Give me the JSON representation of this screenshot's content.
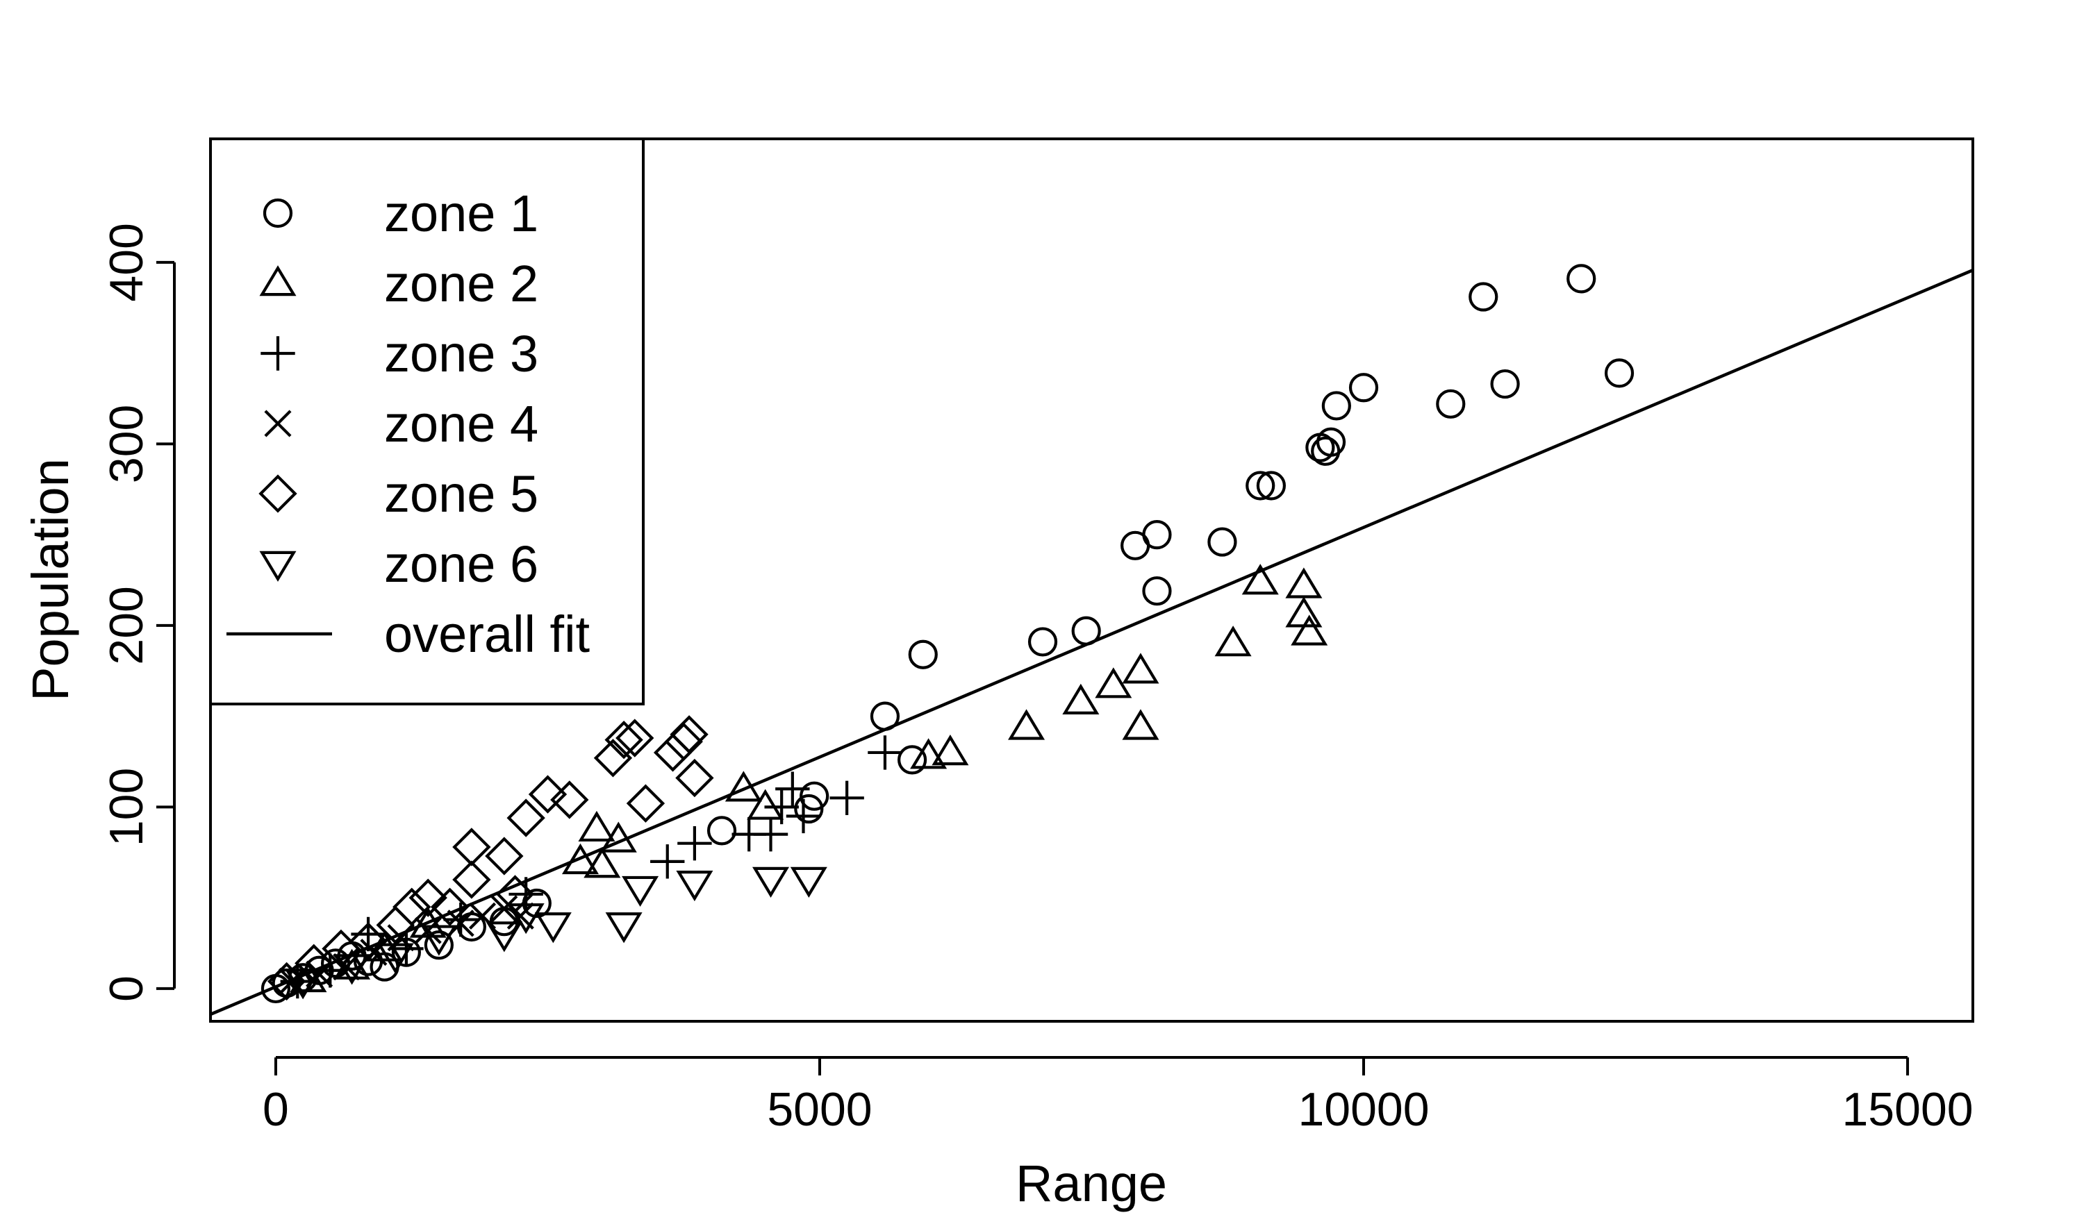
{
  "chart_data": {
    "type": "scatter",
    "title": "",
    "xlabel": "Range",
    "ylabel": "Population",
    "xlim": [
      -600,
      15600
    ],
    "ylim": [
      -18,
      468
    ],
    "x_ticks": [
      0,
      5000,
      10000,
      15000
    ],
    "y_ticks": [
      0,
      100,
      200,
      300,
      400
    ],
    "x_tick_labels": [
      "0",
      "5000",
      "10000",
      "15000"
    ],
    "y_tick_labels": [
      "0",
      "100",
      "200",
      "300",
      "400"
    ],
    "grid": false,
    "legend_position": "top-left",
    "fit_label": "overall fit",
    "fit_line": {
      "intercept": 1,
      "slope": 0.0253
    },
    "series": [
      {
        "name": "zone 1",
        "marker": "circle",
        "points": [
          [
            0,
            0
          ],
          [
            100,
            3
          ],
          [
            250,
            6
          ],
          [
            400,
            10
          ],
          [
            550,
            14
          ],
          [
            700,
            18
          ],
          [
            850,
            15
          ],
          [
            1000,
            12
          ],
          [
            1200,
            20
          ],
          [
            1500,
            24
          ],
          [
            1800,
            34
          ],
          [
            2100,
            37
          ],
          [
            2400,
            47
          ],
          [
            4100,
            87
          ],
          [
            4900,
            99
          ],
          [
            4950,
            106
          ],
          [
            5600,
            150
          ],
          [
            5850,
            126
          ],
          [
            5950,
            184
          ],
          [
            7050,
            191
          ],
          [
            7450,
            197
          ],
          [
            7900,
            244
          ],
          [
            8100,
            250
          ],
          [
            8100,
            219
          ],
          [
            8700,
            246
          ],
          [
            9050,
            277
          ],
          [
            9150,
            277
          ],
          [
            9600,
            298
          ],
          [
            9650,
            296
          ],
          [
            9700,
            301
          ],
          [
            9750,
            321
          ],
          [
            10000,
            331
          ],
          [
            10800,
            322
          ],
          [
            11100,
            381
          ],
          [
            11300,
            333
          ],
          [
            12000,
            391
          ],
          [
            12350,
            339
          ]
        ]
      },
      {
        "name": "zone 2",
        "marker": "triangle",
        "points": [
          [
            300,
            5
          ],
          [
            700,
            12
          ],
          [
            1000,
            22
          ],
          [
            1400,
            35
          ],
          [
            2800,
            70
          ],
          [
            2950,
            88
          ],
          [
            3000,
            68
          ],
          [
            3150,
            82
          ],
          [
            4300,
            110
          ],
          [
            4500,
            100
          ],
          [
            6000,
            128
          ],
          [
            6200,
            130
          ],
          [
            6900,
            144
          ],
          [
            7400,
            158
          ],
          [
            7700,
            167
          ],
          [
            7950,
            144
          ],
          [
            7950,
            175
          ],
          [
            8800,
            190
          ],
          [
            9050,
            224
          ],
          [
            9450,
            222
          ],
          [
            9450,
            206
          ],
          [
            9500,
            196
          ]
        ]
      },
      {
        "name": "zone 3",
        "marker": "plus",
        "points": [
          [
            200,
            4
          ],
          [
            500,
            10
          ],
          [
            850,
            30
          ],
          [
            1200,
            22
          ],
          [
            1700,
            38
          ],
          [
            2300,
            52
          ],
          [
            3600,
            70
          ],
          [
            3850,
            80
          ],
          [
            4350,
            85
          ],
          [
            4550,
            85
          ],
          [
            4650,
            100
          ],
          [
            4750,
            110
          ],
          [
            4850,
            95
          ],
          [
            5250,
            105
          ],
          [
            5600,
            130
          ]
        ]
      },
      {
        "name": "zone 4",
        "marker": "cross",
        "points": [
          [
            150,
            4
          ],
          [
            400,
            8
          ],
          [
            650,
            12
          ],
          [
            900,
            20
          ],
          [
            1150,
            28
          ],
          [
            1400,
            32
          ],
          [
            1700,
            36
          ],
          [
            1900,
            40
          ],
          [
            2100,
            44
          ],
          [
            2250,
            40
          ]
        ]
      },
      {
        "name": "zone 5",
        "marker": "diamond",
        "points": [
          [
            100,
            4
          ],
          [
            350,
            14
          ],
          [
            600,
            22
          ],
          [
            850,
            26
          ],
          [
            1100,
            35
          ],
          [
            1250,
            45
          ],
          [
            1400,
            50
          ],
          [
            1600,
            45
          ],
          [
            1800,
            60
          ],
          [
            1800,
            78
          ],
          [
            2100,
            73
          ],
          [
            2200,
            52
          ],
          [
            2300,
            94
          ],
          [
            2500,
            107
          ],
          [
            2700,
            104
          ],
          [
            3100,
            127
          ],
          [
            3200,
            137
          ],
          [
            3300,
            138
          ],
          [
            3400,
            102
          ],
          [
            3650,
            130
          ],
          [
            3750,
            136
          ],
          [
            3800,
            140
          ],
          [
            3850,
            116
          ]
        ]
      },
      {
        "name": "zone 6",
        "marker": "triangle-down",
        "points": [
          [
            250,
            4
          ],
          [
            700,
            12
          ],
          [
            1100,
            18
          ],
          [
            1500,
            28
          ],
          [
            2100,
            30
          ],
          [
            2300,
            40
          ],
          [
            2550,
            35
          ],
          [
            3200,
            35
          ],
          [
            3350,
            55
          ],
          [
            3850,
            58
          ],
          [
            4550,
            60
          ],
          [
            4900,
            60
          ]
        ]
      }
    ]
  }
}
